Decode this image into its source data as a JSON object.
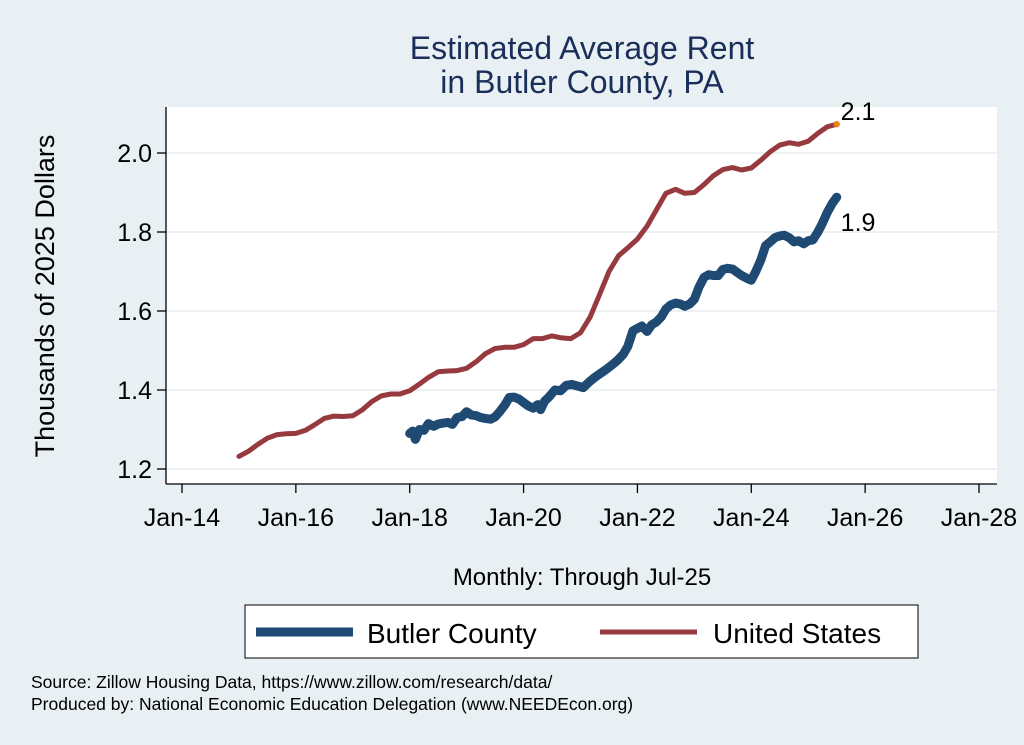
{
  "chart_data": {
    "type": "line",
    "title": [
      "Estimated Average Rent",
      "in Butler County, PA"
    ],
    "xlabel": "Monthly: Through Jul-25",
    "ylabel": "Thousands of 2025 Dollars",
    "x_ticks": [
      {
        "value": 2014,
        "label": "Jan-14"
      },
      {
        "value": 2016,
        "label": "Jan-16"
      },
      {
        "value": 2018,
        "label": "Jan-18"
      },
      {
        "value": 2020,
        "label": "Jan-20"
      },
      {
        "value": 2022,
        "label": "Jan-22"
      },
      {
        "value": 2024,
        "label": "Jan-24"
      },
      {
        "value": 2026,
        "label": "Jan-26"
      },
      {
        "value": 2028,
        "label": "Jan-28"
      }
    ],
    "y_ticks": [
      {
        "value": 1.2,
        "label": "1.2"
      },
      {
        "value": 1.4,
        "label": "1.4"
      },
      {
        "value": 1.6,
        "label": "1.6"
      },
      {
        "value": 1.8,
        "label": "1.8"
      },
      {
        "value": 2.0,
        "label": "2.0"
      }
    ],
    "xlim": [
      2013.72,
      2028.3
    ],
    "ylim": [
      1.165,
      2.115
    ],
    "grid": "horizontal",
    "legend_position": "bottom",
    "series": [
      {
        "name": "Butler County",
        "color": "#1f4a73",
        "end_label": "1.9",
        "points": [
          [
            2018.0,
            1.29
          ],
          [
            2018.05,
            1.296
          ],
          [
            2018.1,
            1.275
          ],
          [
            2018.17,
            1.3
          ],
          [
            2018.25,
            1.298
          ],
          [
            2018.33,
            1.315
          ],
          [
            2018.42,
            1.308
          ],
          [
            2018.5,
            1.314
          ],
          [
            2018.58,
            1.316
          ],
          [
            2018.67,
            1.318
          ],
          [
            2018.75,
            1.313
          ],
          [
            2018.83,
            1.33
          ],
          [
            2018.92,
            1.333
          ],
          [
            2019.0,
            1.345
          ],
          [
            2019.08,
            1.337
          ],
          [
            2019.17,
            1.335
          ],
          [
            2019.25,
            1.33
          ],
          [
            2019.33,
            1.328
          ],
          [
            2019.42,
            1.326
          ],
          [
            2019.5,
            1.332
          ],
          [
            2019.58,
            1.345
          ],
          [
            2019.67,
            1.362
          ],
          [
            2019.75,
            1.381
          ],
          [
            2019.83,
            1.382
          ],
          [
            2019.92,
            1.377
          ],
          [
            2020.0,
            1.368
          ],
          [
            2020.08,
            1.36
          ],
          [
            2020.17,
            1.354
          ],
          [
            2020.25,
            1.363
          ],
          [
            2020.3,
            1.35
          ],
          [
            2020.37,
            1.372
          ],
          [
            2020.45,
            1.383
          ],
          [
            2020.55,
            1.4
          ],
          [
            2020.65,
            1.398
          ],
          [
            2020.75,
            1.412
          ],
          [
            2020.85,
            1.414
          ],
          [
            2020.95,
            1.41
          ],
          [
            2021.05,
            1.406
          ],
          [
            2021.15,
            1.42
          ],
          [
            2021.25,
            1.432
          ],
          [
            2021.35,
            1.442
          ],
          [
            2021.45,
            1.452
          ],
          [
            2021.55,
            1.463
          ],
          [
            2021.65,
            1.475
          ],
          [
            2021.75,
            1.49
          ],
          [
            2021.83,
            1.51
          ],
          [
            2021.92,
            1.55
          ],
          [
            2022.0,
            1.556
          ],
          [
            2022.08,
            1.562
          ],
          [
            2022.17,
            1.548
          ],
          [
            2022.25,
            1.565
          ],
          [
            2022.33,
            1.572
          ],
          [
            2022.42,
            1.585
          ],
          [
            2022.5,
            1.605
          ],
          [
            2022.58,
            1.615
          ],
          [
            2022.67,
            1.62
          ],
          [
            2022.75,
            1.618
          ],
          [
            2022.83,
            1.612
          ],
          [
            2022.92,
            1.618
          ],
          [
            2023.0,
            1.63
          ],
          [
            2023.08,
            1.66
          ],
          [
            2023.17,
            1.685
          ],
          [
            2023.25,
            1.692
          ],
          [
            2023.33,
            1.69
          ],
          [
            2023.42,
            1.69
          ],
          [
            2023.5,
            1.705
          ],
          [
            2023.58,
            1.708
          ],
          [
            2023.67,
            1.706
          ],
          [
            2023.75,
            1.698
          ],
          [
            2023.83,
            1.69
          ],
          [
            2023.92,
            1.683
          ],
          [
            2024.0,
            1.678
          ],
          [
            2024.08,
            1.7
          ],
          [
            2024.17,
            1.73
          ],
          [
            2024.25,
            1.765
          ],
          [
            2024.33,
            1.775
          ],
          [
            2024.42,
            1.786
          ],
          [
            2024.5,
            1.79
          ],
          [
            2024.58,
            1.792
          ],
          [
            2024.67,
            1.785
          ],
          [
            2024.75,
            1.775
          ],
          [
            2024.83,
            1.778
          ],
          [
            2024.92,
            1.77
          ],
          [
            2025.0,
            1.778
          ],
          [
            2025.08,
            1.78
          ],
          [
            2025.17,
            1.8
          ],
          [
            2025.25,
            1.822
          ],
          [
            2025.33,
            1.848
          ],
          [
            2025.42,
            1.872
          ],
          [
            2025.5,
            1.888
          ]
        ]
      },
      {
        "name": "United States",
        "color": "#963a40",
        "end_label": "2.1",
        "points": [
          [
            2015.0,
            1.232
          ],
          [
            2015.17,
            1.245
          ],
          [
            2015.33,
            1.262
          ],
          [
            2015.5,
            1.278
          ],
          [
            2015.67,
            1.287
          ],
          [
            2015.83,
            1.289
          ],
          [
            2016.0,
            1.29
          ],
          [
            2016.17,
            1.298
          ],
          [
            2016.33,
            1.312
          ],
          [
            2016.5,
            1.328
          ],
          [
            2016.67,
            1.334
          ],
          [
            2016.83,
            1.333
          ],
          [
            2017.0,
            1.335
          ],
          [
            2017.17,
            1.35
          ],
          [
            2017.33,
            1.37
          ],
          [
            2017.5,
            1.385
          ],
          [
            2017.67,
            1.39
          ],
          [
            2017.83,
            1.39
          ],
          [
            2018.0,
            1.398
          ],
          [
            2018.17,
            1.415
          ],
          [
            2018.33,
            1.432
          ],
          [
            2018.5,
            1.446
          ],
          [
            2018.67,
            1.448
          ],
          [
            2018.83,
            1.449
          ],
          [
            2019.0,
            1.455
          ],
          [
            2019.17,
            1.472
          ],
          [
            2019.33,
            1.492
          ],
          [
            2019.5,
            1.505
          ],
          [
            2019.67,
            1.508
          ],
          [
            2019.83,
            1.508
          ],
          [
            2020.0,
            1.515
          ],
          [
            2020.17,
            1.53
          ],
          [
            2020.33,
            1.53
          ],
          [
            2020.5,
            1.537
          ],
          [
            2020.67,
            1.532
          ],
          [
            2020.83,
            1.53
          ],
          [
            2021.0,
            1.545
          ],
          [
            2021.17,
            1.585
          ],
          [
            2021.33,
            1.64
          ],
          [
            2021.5,
            1.7
          ],
          [
            2021.67,
            1.74
          ],
          [
            2021.83,
            1.76
          ],
          [
            2022.0,
            1.782
          ],
          [
            2022.17,
            1.815
          ],
          [
            2022.33,
            1.855
          ],
          [
            2022.5,
            1.898
          ],
          [
            2022.67,
            1.908
          ],
          [
            2022.83,
            1.898
          ],
          [
            2023.0,
            1.9
          ],
          [
            2023.17,
            1.92
          ],
          [
            2023.33,
            1.942
          ],
          [
            2023.5,
            1.958
          ],
          [
            2023.67,
            1.963
          ],
          [
            2023.83,
            1.957
          ],
          [
            2024.0,
            1.962
          ],
          [
            2024.17,
            1.982
          ],
          [
            2024.33,
            2.003
          ],
          [
            2024.5,
            2.02
          ],
          [
            2024.67,
            2.026
          ],
          [
            2024.83,
            2.022
          ],
          [
            2025.0,
            2.03
          ],
          [
            2025.17,
            2.05
          ],
          [
            2025.33,
            2.066
          ],
          [
            2025.5,
            2.073
          ]
        ]
      }
    ],
    "end_marker_color": "#e8800a"
  },
  "legend": {
    "items": [
      {
        "label": "Butler County",
        "color": "#1f4a73"
      },
      {
        "label": "United States",
        "color": "#963a40"
      }
    ]
  },
  "notes": {
    "source": "Source: Zillow Housing Data, https://www.zillow.com/research/data/",
    "producer": "Produced by: National Economic Education Delegation (www.NEEDEcon.org)"
  }
}
